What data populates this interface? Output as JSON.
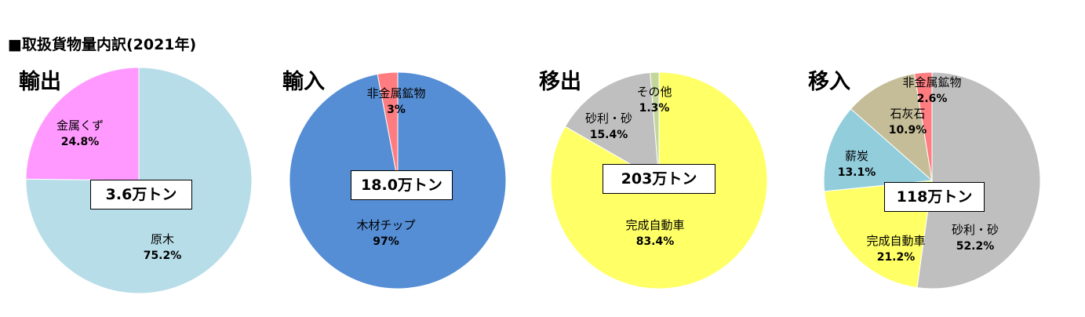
{
  "page_title": "■取扱貨物量内訳(2021年)",
  "chart_data": [
    {
      "type": "pie",
      "title": "輸出",
      "total": "3.6万トン",
      "slices": [
        {
          "label": "原木",
          "pct_text": "75.2%",
          "value": 75.2,
          "color": "#b7dde8"
        },
        {
          "label": "金属くず",
          "pct_text": "24.8%",
          "value": 24.8,
          "color": "#ff99ff"
        }
      ]
    },
    {
      "type": "pie",
      "title": "輸入",
      "total": "18.0万トン",
      "slices": [
        {
          "label": "木材チップ",
          "pct_text": "97%",
          "value": 97,
          "color": "#558ed5"
        },
        {
          "label": "非金属鉱物",
          "pct_text": "3%",
          "value": 3,
          "color": "#ff7c80"
        }
      ]
    },
    {
      "type": "pie",
      "title": "移出",
      "total": "203万トン",
      "slices": [
        {
          "label": "完成自動車",
          "pct_text": "83.4%",
          "value": 83.4,
          "color": "#ffff66"
        },
        {
          "label": "砂利・砂",
          "pct_text": "15.4%",
          "value": 15.4,
          "color": "#bfbfbf"
        },
        {
          "label": "その他",
          "pct_text": "1.3%",
          "value": 1.3,
          "color": "#c3d69b"
        }
      ]
    },
    {
      "type": "pie",
      "title": "移入",
      "total": "118万トン",
      "slices": [
        {
          "label": "砂利・砂",
          "pct_text": "52.2%",
          "value": 52.2,
          "color": "#bfbfbf"
        },
        {
          "label": "完成自動車",
          "pct_text": "21.2%",
          "value": 21.2,
          "color": "#ffff66"
        },
        {
          "label": "薪炭",
          "pct_text": "13.1%",
          "value": 13.1,
          "color": "#92cddc"
        },
        {
          "label": "石灰石",
          "pct_text": "10.9%",
          "value": 10.9,
          "color": "#c4bd97"
        },
        {
          "label": "非金属鉱物",
          "pct_text": "2.6%",
          "value": 2.6,
          "color": "#ff7c80"
        }
      ]
    }
  ]
}
